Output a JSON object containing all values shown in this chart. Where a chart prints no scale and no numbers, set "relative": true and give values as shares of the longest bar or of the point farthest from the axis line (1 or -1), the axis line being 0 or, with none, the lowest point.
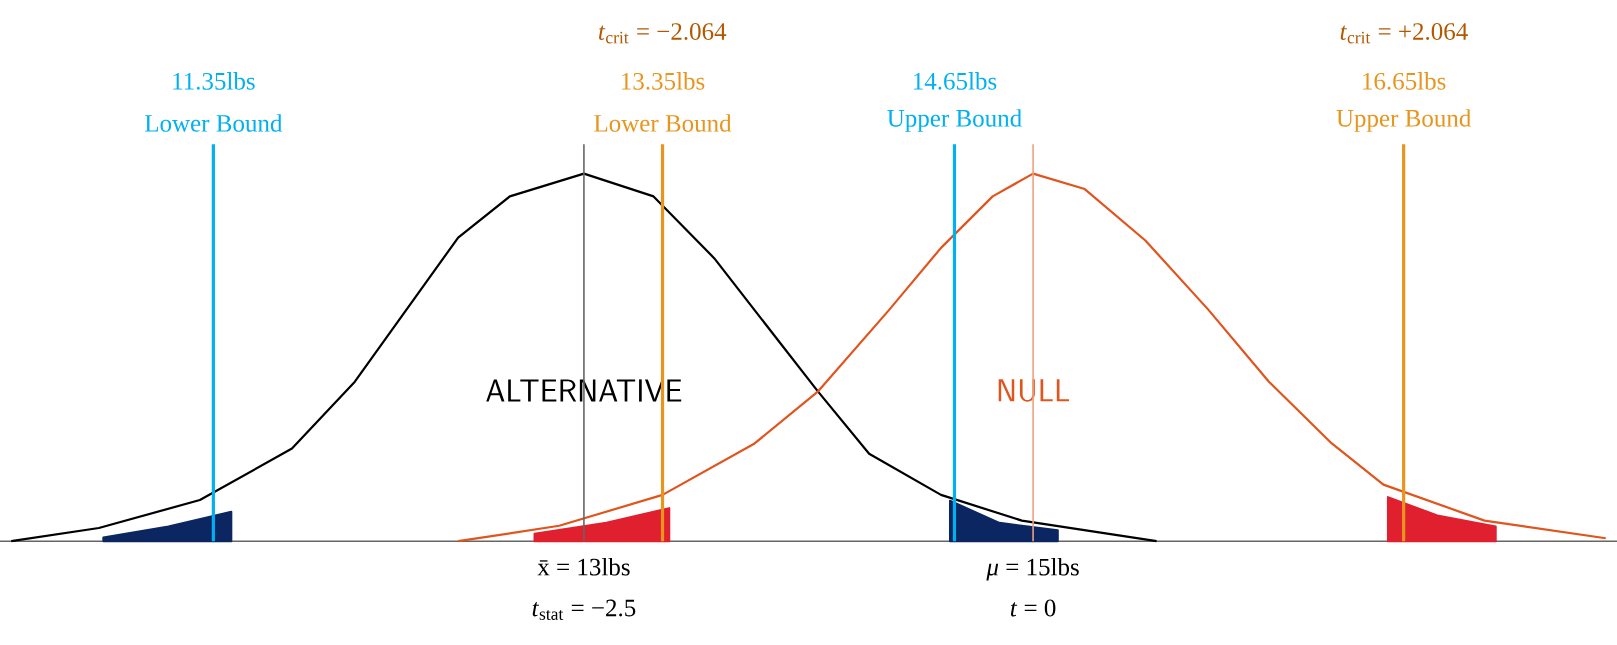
{
  "chart_data": {
    "type": "line",
    "relative": true,
    "xlim": [
      10.4,
      17.6
    ],
    "xticks": [
      {
        "value": 13,
        "label": "x̄ = 13lbs"
      },
      {
        "value": 15,
        "label": "*μ* = 15lbs"
      }
    ],
    "x2lim": [
      -5.75,
      3.25
    ],
    "x2ticks": [
      {
        "value": -2.064,
        "label": "*t*$_{crit}$ = −2.064"
      },
      {
        "value": 2.064,
        "label": "*t*$_{crit}$ = +2.064"
      }
    ],
    "series": [
      {
        "name": "ALTERNATIVE",
        "color": "#000000",
        "x": [
          10.45,
          10.84,
          11.29,
          11.7,
          11.98,
          12.21,
          12.44,
          12.67,
          13.0,
          13.31,
          13.58,
          13.86,
          14.04,
          14.27,
          14.59,
          14.95,
          15.55
        ],
        "values": [
          0,
          0.036,
          0.112,
          0.252,
          0.434,
          0.63,
          0.826,
          0.938,
          1,
          0.938,
          0.77,
          0.55,
          0.409,
          0.238,
          0.126,
          0.056,
          0
        ]
      },
      {
        "name": "NULL",
        "color": "#e0541e",
        "x": [
          12.44,
          12.89,
          13.35,
          13.76,
          14.04,
          14.36,
          14.59,
          14.82,
          15.0,
          15.23,
          15.5,
          15.78,
          16.05,
          16.33,
          16.56,
          17.01,
          17.55
        ],
        "values": [
          0,
          0.042,
          0.126,
          0.266,
          0.406,
          0.63,
          0.798,
          0.938,
          1,
          0.958,
          0.818,
          0.63,
          0.434,
          0.266,
          0.154,
          0.056,
          0.008
        ]
      },
      {
        "type": "area",
        "color": "#0b2660",
        "x": [
          10.86,
          11.15,
          11.43
        ],
        "values": [
          0.01,
          0.04,
          0.08
        ]
      },
      {
        "type": "area",
        "color": "#e0202e",
        "x": [
          12.78,
          13.1,
          13.38
        ],
        "values": [
          0.02,
          0.05,
          0.09
        ]
      },
      {
        "type": "area",
        "color": "#0b2660",
        "x": [
          14.63,
          14.85,
          15.11
        ],
        "values": [
          0.11,
          0.05,
          0.03
        ]
      },
      {
        "type": "area",
        "color": "#e0202e",
        "x": [
          16.58,
          16.8,
          17.06
        ],
        "values": [
          0.12,
          0.07,
          0.04
        ]
      }
    ],
    "ref_lines": [
      {
        "axis": "x",
        "value": 11.35,
        "label": "11.35lbs",
        "color": "#00b0f0"
      },
      {
        "axis": "x",
        "value": 13.35,
        "label": "13.35lbs",
        "color": "#e8951e"
      },
      {
        "axis": "x",
        "value": 14.65,
        "label": "14.65lbs",
        "color": "#00b0f0"
      },
      {
        "axis": "x",
        "value": 16.65,
        "label": "16.65lbs",
        "color": "#e8951e"
      },
      {
        "axis": "x",
        "value": 13,
        "color": "#666666"
      },
      {
        "axis": "x",
        "value": 15,
        "color": "#f0a080"
      }
    ],
    "annotations": [
      "Lower Bound",
      "Lower Bound",
      "Upper Bound",
      "Upper Bound",
      "*t*$_{stat}$ = −2.5",
      "*t* = 0"
    ]
  }
}
